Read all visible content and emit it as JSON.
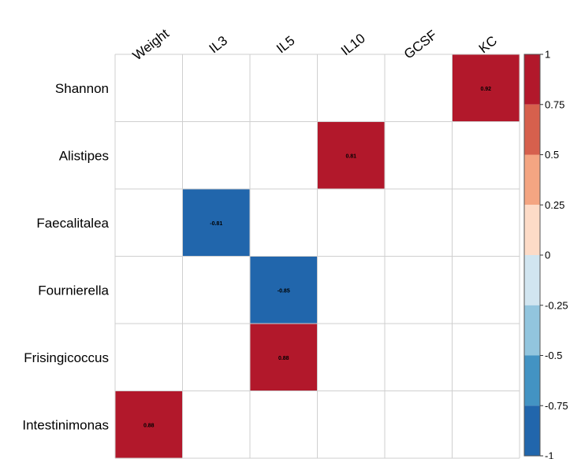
{
  "chart_data": {
    "type": "heatmap",
    "title": "",
    "xlabel": "",
    "ylabel": "",
    "columns": [
      "Weight",
      "IL3",
      "IL5",
      "IL10",
      "GCSF",
      "KC"
    ],
    "rows": [
      "Shannon",
      "Alistipes",
      "Faecalitalea",
      "Fournierella",
      "Frisingicoccus",
      "Intestinimonas"
    ],
    "cells": [
      {
        "row": "Shannon",
        "column": "KC",
        "value": 0.92,
        "label": "0.92"
      },
      {
        "row": "Alistipes",
        "column": "IL10",
        "value": 0.81,
        "label": "0.81"
      },
      {
        "row": "Faecalitalea",
        "column": "IL3",
        "value": -0.81,
        "label": "-0.81"
      },
      {
        "row": "Fournierella",
        "column": "IL5",
        "value": -0.85,
        "label": "-0.85"
      },
      {
        "row": "Frisingicoccus",
        "column": "IL5",
        "value": 0.88,
        "label": "0.88"
      },
      {
        "row": "Intestinimonas",
        "column": "Weight",
        "value": 0.88,
        "label": "0.88"
      }
    ],
    "colorbar": {
      "range": [
        -1,
        1
      ],
      "tick_labels": [
        "1",
        "0.75",
        "0.5",
        "0.25",
        "0",
        "-0.25",
        "-0.5",
        "-0.75",
        "-1"
      ],
      "tick_values": [
        1,
        0.75,
        0.5,
        0.25,
        0,
        -0.25,
        -0.5,
        -0.75,
        -1
      ],
      "bands": [
        "#B2182B",
        "#D6604D",
        "#F4A582",
        "#FDDBC7",
        "#D1E5F0",
        "#92C5DE",
        "#4393C3",
        "#2166AC"
      ],
      "placement": "right"
    },
    "grid": true
  }
}
